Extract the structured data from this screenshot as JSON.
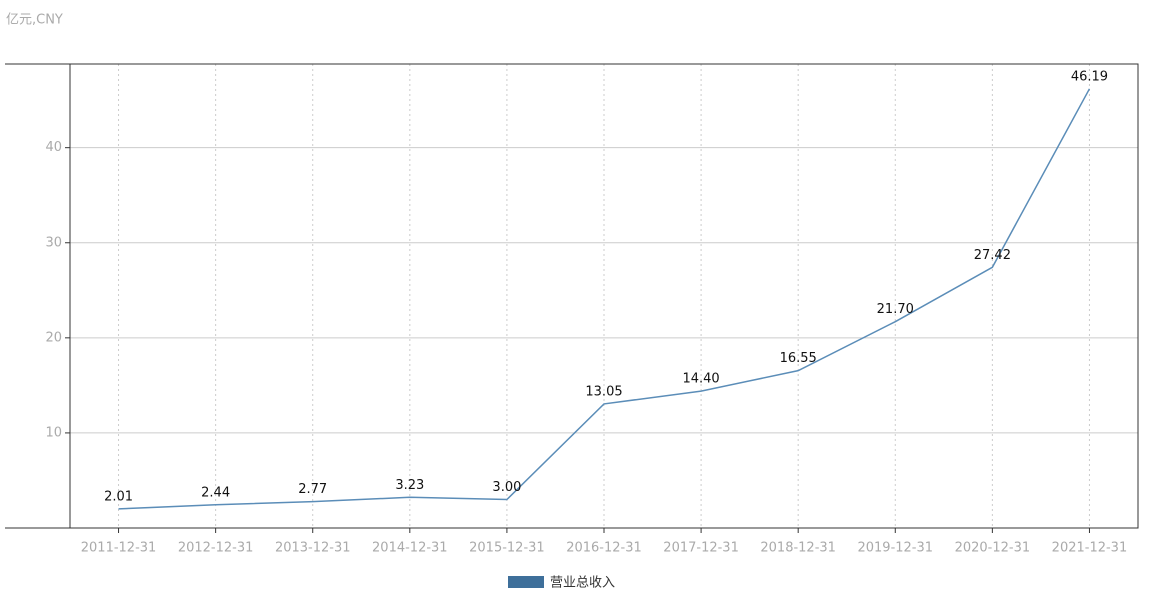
{
  "chart_data": {
    "type": "line",
    "y_label": "亿元,CNY",
    "categories": [
      "2011-12-31",
      "2012-12-31",
      "2013-12-31",
      "2014-12-31",
      "2015-12-31",
      "2016-12-31",
      "2017-12-31",
      "2018-12-31",
      "2019-12-31",
      "2020-12-31",
      "2021-12-31"
    ],
    "series": [
      {
        "name": "营业总收入",
        "color": "#5b8db8",
        "values": [
          2.01,
          2.44,
          2.77,
          3.23,
          3.0,
          13.05,
          14.4,
          16.55,
          21.7,
          27.42,
          46.19
        ],
        "value_labels": [
          "2.01",
          "2.44",
          "2.77",
          "3.23",
          "3.00",
          "13.05",
          "14.40",
          "16.55",
          "21.70",
          "27.42",
          "46.19"
        ]
      }
    ],
    "legend_color": "#3e6f9a",
    "ylim": [
      0,
      48.8
    ],
    "yticks": [
      10,
      20,
      30,
      40
    ],
    "grid": true
  }
}
